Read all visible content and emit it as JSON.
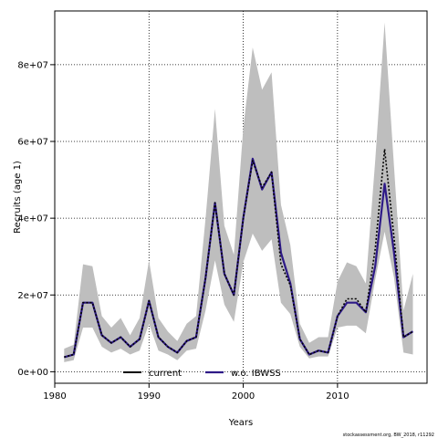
{
  "chart_data": {
    "type": "line",
    "xlabel": "Years",
    "ylabel": "Recruits (age 1)",
    "xlim": [
      1980,
      2019.5
    ],
    "ylim": [
      -3000000,
      94000000
    ],
    "xticks": [
      1980,
      1990,
      2000,
      2010
    ],
    "xtick_labels": [
      "1980",
      "1990",
      "2000",
      "2010"
    ],
    "yticks": [
      0,
      20000000,
      40000000,
      60000000,
      80000000
    ],
    "ytick_labels": [
      "0e+00",
      "2e+07",
      "4e+07",
      "6e+07",
      "8e+07"
    ],
    "grid": true,
    "legend_position": "bottom",
    "footnote": "stockassessment.org, BW_2018, r11292",
    "x": [
      1981,
      1982,
      1983,
      1984,
      1985,
      1986,
      1987,
      1988,
      1989,
      1990,
      1991,
      1992,
      1993,
      1994,
      1995,
      1996,
      1997,
      1998,
      1999,
      2000,
      2001,
      2002,
      2003,
      2004,
      2005,
      2006,
      2007,
      2008,
      2009,
      2010,
      2011,
      2012,
      2013,
      2014,
      2015,
      2016,
      2017,
      2018
    ],
    "band": {
      "lower": [
        2500000,
        3000000,
        11500000,
        11500000,
        6500000,
        5000000,
        6000000,
        4500000,
        5500000,
        12500000,
        5500000,
        4500000,
        3000000,
        5500000,
        6000000,
        16000000,
        29000000,
        17500000,
        13000000,
        28500000,
        36000000,
        31500000,
        34500000,
        18000000,
        15000000,
        6500000,
        3500000,
        4000000,
        4000000,
        11500000,
        12000000,
        12000000,
        10000000,
        24000000,
        36500000,
        24500000,
        5000000,
        4500000
      ],
      "upper": [
        6000000,
        7000000,
        28000000,
        27500000,
        14500000,
        11500000,
        14000000,
        9500000,
        14000000,
        29000000,
        14000000,
        10500000,
        8000000,
        12500000,
        14500000,
        40000000,
        68500000,
        38000000,
        30500000,
        63500000,
        84500000,
        73500000,
        78000000,
        43500000,
        33000000,
        12500000,
        7500000,
        9000000,
        9000000,
        23500000,
        28500000,
        27500000,
        23000000,
        55000000,
        91000000,
        53500000,
        16000000,
        25500000
      ]
    },
    "series": [
      {
        "name": "current",
        "color": "#000000",
        "style": "dotted",
        "values": [
          3800000,
          4500000,
          18000000,
          18000000,
          9500000,
          7500000,
          9000000,
          6500000,
          8500000,
          18500000,
          9000000,
          6500000,
          5000000,
          8000000,
          9000000,
          24500000,
          44000000,
          25500000,
          20000000,
          40000000,
          55000000,
          48000000,
          52000000,
          28000000,
          22500000,
          8500000,
          4500000,
          5500000,
          5000000,
          14500000,
          19000000,
          19000000,
          15500000,
          32000000,
          58000000,
          35000000,
          9000000,
          10500000
        ]
      },
      {
        "name": "w.o. IBWSS",
        "color": "#2e1a87",
        "style": "solid",
        "values": [
          3800000,
          4500000,
          18000000,
          18000000,
          9500000,
          7500000,
          9000000,
          6500000,
          8500000,
          18500000,
          9000000,
          6500000,
          5000000,
          8000000,
          9000000,
          24500000,
          44000000,
          25500000,
          20000000,
          40000000,
          55500000,
          47500000,
          52000000,
          31000000,
          23000000,
          8500000,
          4500000,
          5500000,
          5000000,
          14500000,
          18000000,
          18000000,
          15500000,
          27500000,
          49000000,
          31000000,
          9000000,
          10500000
        ]
      }
    ]
  }
}
